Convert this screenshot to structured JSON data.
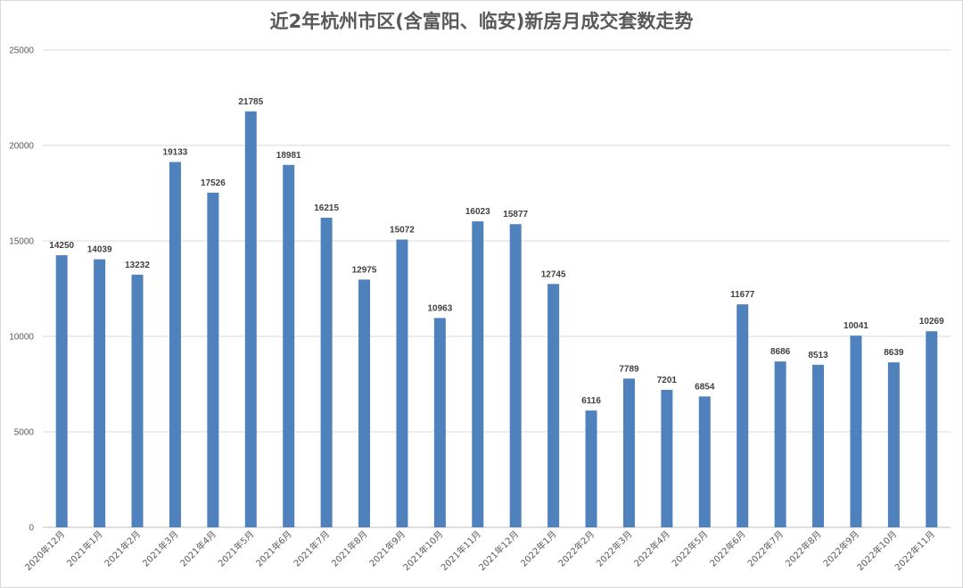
{
  "chart_data": {
    "type": "bar",
    "title": "近2年杭州市区(含富阳、临安)新房月成交套数走势",
    "xlabel": "",
    "ylabel": "",
    "ylim": [
      0,
      25000
    ],
    "yticks": [
      0,
      5000,
      10000,
      15000,
      20000,
      25000
    ],
    "grid": true,
    "legend": "none",
    "bar_color": "#4f81bd",
    "categories": [
      "2020年12月",
      "2021年1月",
      "2021年2月",
      "2021年3月",
      "2021年4月",
      "2021年5月",
      "2021年6月",
      "2021年7月",
      "2021年8月",
      "2021年9月",
      "2021年10月",
      "2021年11月",
      "2021年12月",
      "2022年1月",
      "2022年2月",
      "2022年3月",
      "2022年4月",
      "2022年5月",
      "2022年6月",
      "2022年7月",
      "2022年8月",
      "2022年9月",
      "2022年10月",
      "2022年11月"
    ],
    "values": [
      14250,
      14039,
      13232,
      19133,
      17526,
      21785,
      18981,
      16215,
      12975,
      15072,
      10963,
      16023,
      15877,
      12745,
      6116,
      7789,
      7201,
      6854,
      11677,
      8686,
      8513,
      10041,
      8639,
      10269
    ]
  }
}
